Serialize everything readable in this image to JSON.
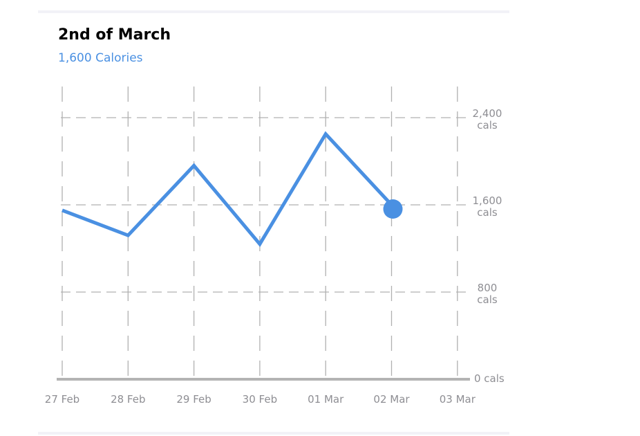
{
  "chart_data": {
    "type": "line",
    "title": "2nd of March",
    "subtitle": "1,600 Calories",
    "categories": [
      "27 Feb",
      "28 Feb",
      "29 Feb",
      "30 Feb",
      "01 Mar",
      "02 Mar",
      "03 Mar"
    ],
    "series": [
      {
        "color": "#4a90e2",
        "values": [
          1550,
          1320,
          1960,
          1240,
          2250,
          1600,
          null
        ]
      }
    ],
    "ylim": [
      0,
      2700
    ],
    "yticks": [
      {
        "value": 0,
        "label": "0 cals"
      },
      {
        "value": 800,
        "label": "800\ncals"
      },
      {
        "value": 1600,
        "label": "1,600\ncals"
      },
      {
        "value": 2400,
        "label": "2,400\ncals"
      }
    ],
    "grid": true
  }
}
